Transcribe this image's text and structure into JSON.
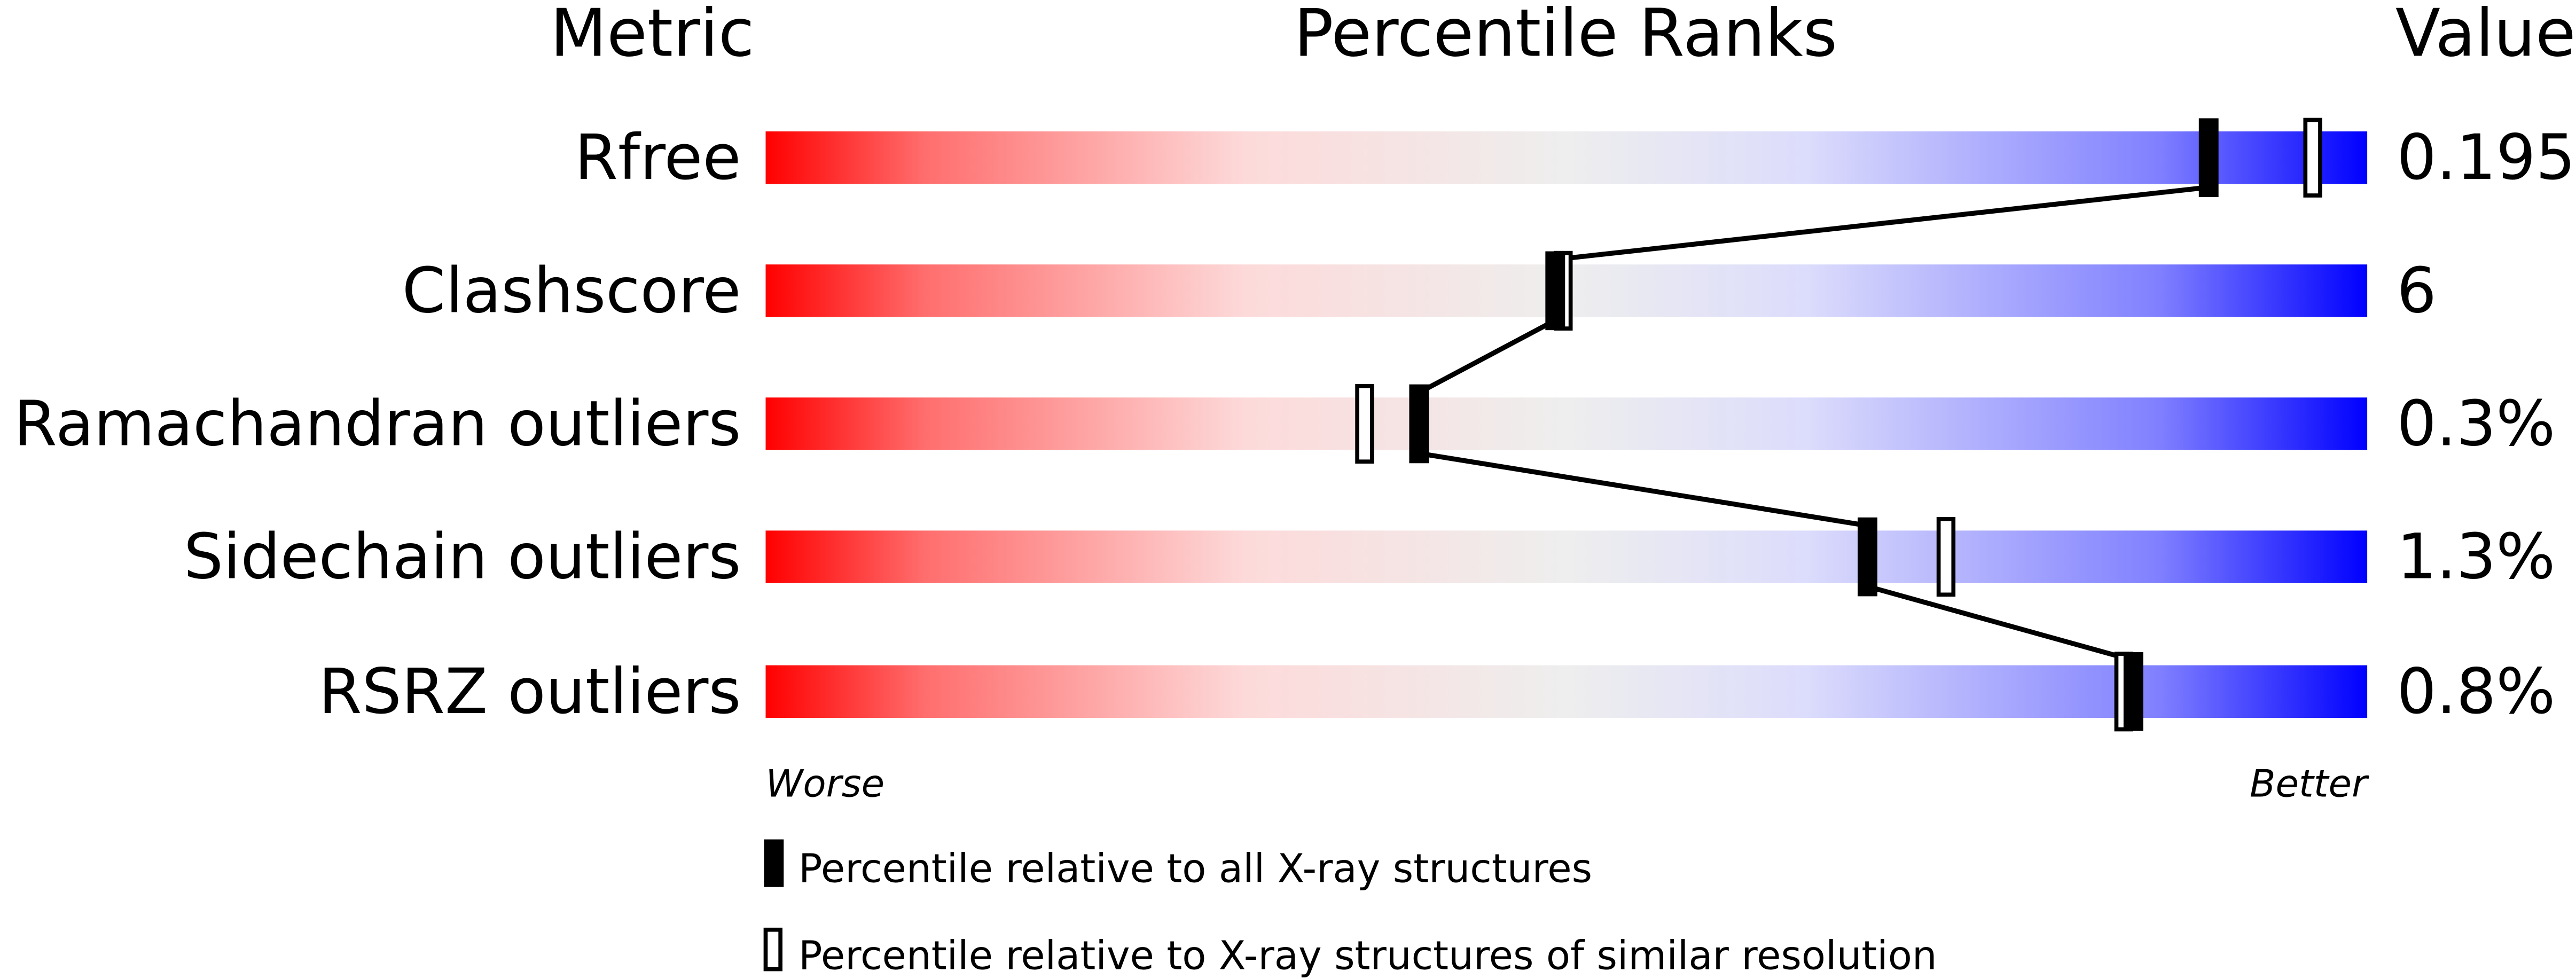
{
  "chart_data": {
    "type": "percentile-slider",
    "headers": {
      "metric": "Metric",
      "ranks": "Percentile Ranks",
      "value": "Value"
    },
    "xlim": [
      0,
      100
    ],
    "axis_labels": {
      "left": "Worse",
      "right": "Better"
    },
    "gradient_colors": [
      "#ff0000",
      "#ff7070",
      "#fddada",
      "#eeeeee",
      "#dcdcfc",
      "#8080ff",
      "#0000ff"
    ],
    "rows": [
      {
        "metric": "Rfree",
        "value": "0.195",
        "percentile_all": 90.1,
        "percentile_similar": 96.6
      },
      {
        "metric": "Clashscore",
        "value": "6",
        "percentile_all": 49.3,
        "percentile_similar": 49.8
      },
      {
        "metric": "Ramachandran outliers",
        "value": "0.3%",
        "percentile_all": 40.8,
        "percentile_similar": 37.4
      },
      {
        "metric": "Sidechain outliers",
        "value": "1.3%",
        "percentile_all": 68.8,
        "percentile_similar": 73.7
      },
      {
        "metric": "RSRZ outliers",
        "value": "0.8%",
        "percentile_all": 85.4,
        "percentile_similar": 84.8
      }
    ],
    "legend": [
      {
        "marker": "filled",
        "label": "Percentile relative to all X-ray structures"
      },
      {
        "marker": "open",
        "label": "Percentile relative to X-ray structures of similar resolution"
      }
    ]
  }
}
